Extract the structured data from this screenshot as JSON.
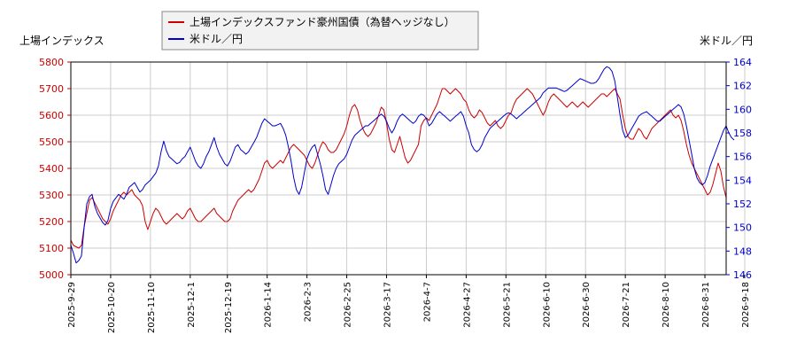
{
  "chart_data": {
    "type": "line",
    "legend_placement": "top",
    "grid": true,
    "y_left_label": "上場インデックス",
    "y_right_label": "米ドル／円",
    "ylim_left": [
      5000,
      5800
    ],
    "ylim_right": [
      146,
      164
    ],
    "yticks_left": [
      5000,
      5100,
      5200,
      5300,
      5400,
      5500,
      5600,
      5700,
      5800
    ],
    "yticks_right": [
      146,
      148,
      150,
      152,
      154,
      156,
      158,
      160,
      162,
      164
    ],
    "x_tick_labels": [
      "2025-9-29",
      "2025-10-20",
      "2025-11-10",
      "2025-12-1",
      "2025-12-19",
      "2026-1-14",
      "2026-2-3",
      "2026-2-25",
      "2026-3-17",
      "2026-4-7",
      "2026-4-27",
      "2026-5-21",
      "2026-6-10",
      "2026-6-30",
      "2026-7-21",
      "2026-8-10",
      "2026-8-31",
      "2026-9-18"
    ],
    "x_tick_index": [
      0,
      15,
      30,
      45,
      59,
      74,
      89,
      104,
      119,
      134,
      149,
      164,
      179,
      194,
      209,
      224,
      239,
      254
    ],
    "series": [
      {
        "name": "上場インデックスファンド豪州国債（為替ヘッジなし）",
        "axis": "left",
        "color": "#cc0000",
        "values": [
          5130,
          5110,
          5105,
          5100,
          5110,
          5180,
          5230,
          5280,
          5290,
          5270,
          5250,
          5230,
          5210,
          5200,
          5190,
          5210,
          5240,
          5260,
          5280,
          5300,
          5310,
          5300,
          5310,
          5320,
          5300,
          5290,
          5280,
          5260,
          5200,
          5170,
          5200,
          5230,
          5250,
          5240,
          5220,
          5200,
          5190,
          5200,
          5210,
          5220,
          5230,
          5220,
          5210,
          5220,
          5240,
          5250,
          5230,
          5210,
          5200,
          5200,
          5210,
          5220,
          5230,
          5240,
          5250,
          5230,
          5220,
          5210,
          5200,
          5200,
          5210,
          5240,
          5260,
          5280,
          5290,
          5300,
          5310,
          5320,
          5310,
          5320,
          5340,
          5360,
          5390,
          5420,
          5430,
          5410,
          5400,
          5410,
          5420,
          5430,
          5420,
          5440,
          5460,
          5480,
          5490,
          5480,
          5470,
          5460,
          5450,
          5430,
          5410,
          5400,
          5420,
          5450,
          5480,
          5500,
          5490,
          5470,
          5460,
          5460,
          5470,
          5490,
          5510,
          5530,
          5560,
          5600,
          5630,
          5640,
          5620,
          5580,
          5550,
          5530,
          5520,
          5530,
          5550,
          5570,
          5600,
          5630,
          5620,
          5570,
          5510,
          5470,
          5460,
          5490,
          5520,
          5480,
          5440,
          5420,
          5430,
          5450,
          5470,
          5490,
          5560,
          5580,
          5590,
          5580,
          5600,
          5620,
          5640,
          5670,
          5700,
          5700,
          5690,
          5680,
          5690,
          5700,
          5690,
          5680,
          5660,
          5650,
          5620,
          5600,
          5590,
          5600,
          5620,
          5610,
          5590,
          5570,
          5560,
          5570,
          5580,
          5560,
          5550,
          5560,
          5580,
          5600,
          5610,
          5640,
          5660,
          5670,
          5680,
          5690,
          5700,
          5690,
          5680,
          5660,
          5640,
          5620,
          5600,
          5620,
          5650,
          5670,
          5680,
          5670,
          5660,
          5650,
          5640,
          5630,
          5640,
          5650,
          5640,
          5630,
          5640,
          5650,
          5640,
          5630,
          5640,
          5650,
          5660,
          5670,
          5680,
          5680,
          5670,
          5680,
          5690,
          5700,
          5680,
          5660,
          5600,
          5550,
          5520,
          5510,
          5510,
          5530,
          5550,
          5540,
          5520,
          5510,
          5530,
          5550,
          5560,
          5570,
          5580,
          5590,
          5600,
          5610,
          5620,
          5600,
          5590,
          5600,
          5580,
          5540,
          5490,
          5450,
          5420,
          5400,
          5380,
          5360,
          5340,
          5320,
          5300,
          5310,
          5340,
          5380,
          5420,
          5390,
          5330,
          5290
        ]
      },
      {
        "name": "米ドル／円",
        "axis": "right",
        "color": "#0000cc",
        "values": [
          148.5,
          147.8,
          147.0,
          147.2,
          147.6,
          150.0,
          152.0,
          152.6,
          152.8,
          151.8,
          151.2,
          150.8,
          150.4,
          150.2,
          150.6,
          151.6,
          152.2,
          152.5,
          152.8,
          152.6,
          152.4,
          152.8,
          153.4,
          153.6,
          153.8,
          153.4,
          153.0,
          153.2,
          153.6,
          153.8,
          154.0,
          154.3,
          154.6,
          155.2,
          156.4,
          157.3,
          156.5,
          156.0,
          155.8,
          155.6,
          155.4,
          155.5,
          155.8,
          156.0,
          156.4,
          156.8,
          156.2,
          155.6,
          155.2,
          155.0,
          155.4,
          156.0,
          156.4,
          157.0,
          157.6,
          156.8,
          156.2,
          155.8,
          155.4,
          155.2,
          155.6,
          156.2,
          156.8,
          157.0,
          156.6,
          156.4,
          156.2,
          156.4,
          156.8,
          157.2,
          157.6,
          158.2,
          158.8,
          159.2,
          159.0,
          158.8,
          158.6,
          158.6,
          158.7,
          158.8,
          158.4,
          157.8,
          156.8,
          155.6,
          154.2,
          153.2,
          152.8,
          153.4,
          154.6,
          155.8,
          156.4,
          156.8,
          157.0,
          156.2,
          155.4,
          154.4,
          153.2,
          152.8,
          153.6,
          154.4,
          155.0,
          155.4,
          155.6,
          155.8,
          156.2,
          156.8,
          157.4,
          157.8,
          158.0,
          158.2,
          158.4,
          158.6,
          158.6,
          158.8,
          159.0,
          159.2,
          159.4,
          159.6,
          159.4,
          159.0,
          158.4,
          158.0,
          158.4,
          159.0,
          159.4,
          159.6,
          159.4,
          159.2,
          159.0,
          158.8,
          159.0,
          159.4,
          159.6,
          159.5,
          159.2,
          158.6,
          158.8,
          159.2,
          159.6,
          159.8,
          159.6,
          159.4,
          159.2,
          159.0,
          159.2,
          159.4,
          159.6,
          159.8,
          159.4,
          158.6,
          158.0,
          157.0,
          156.6,
          156.4,
          156.6,
          157.0,
          157.6,
          158.0,
          158.4,
          158.6,
          158.8,
          159.0,
          159.2,
          159.4,
          159.6,
          159.7,
          159.6,
          159.4,
          159.2,
          159.4,
          159.6,
          159.8,
          160.0,
          160.2,
          160.4,
          160.6,
          160.8,
          161.0,
          161.4,
          161.6,
          161.8,
          161.8,
          161.8,
          161.8,
          161.7,
          161.6,
          161.5,
          161.6,
          161.8,
          162.0,
          162.2,
          162.4,
          162.6,
          162.5,
          162.4,
          162.3,
          162.2,
          162.2,
          162.3,
          162.6,
          163.0,
          163.4,
          163.6,
          163.5,
          163.2,
          162.4,
          161.0,
          159.5,
          158.2,
          157.6,
          157.8,
          158.2,
          158.6,
          159.0,
          159.4,
          159.6,
          159.7,
          159.8,
          159.6,
          159.4,
          159.2,
          159.0,
          159.0,
          159.2,
          159.4,
          159.6,
          159.8,
          160.0,
          160.2,
          160.4,
          160.2,
          159.6,
          158.6,
          157.4,
          156.2,
          155.0,
          154.2,
          153.8,
          153.6,
          153.8,
          154.4,
          155.2,
          155.8,
          156.4,
          157.0,
          157.6,
          158.2,
          158.6,
          158.0,
          157.6,
          157.4
        ]
      }
    ]
  }
}
